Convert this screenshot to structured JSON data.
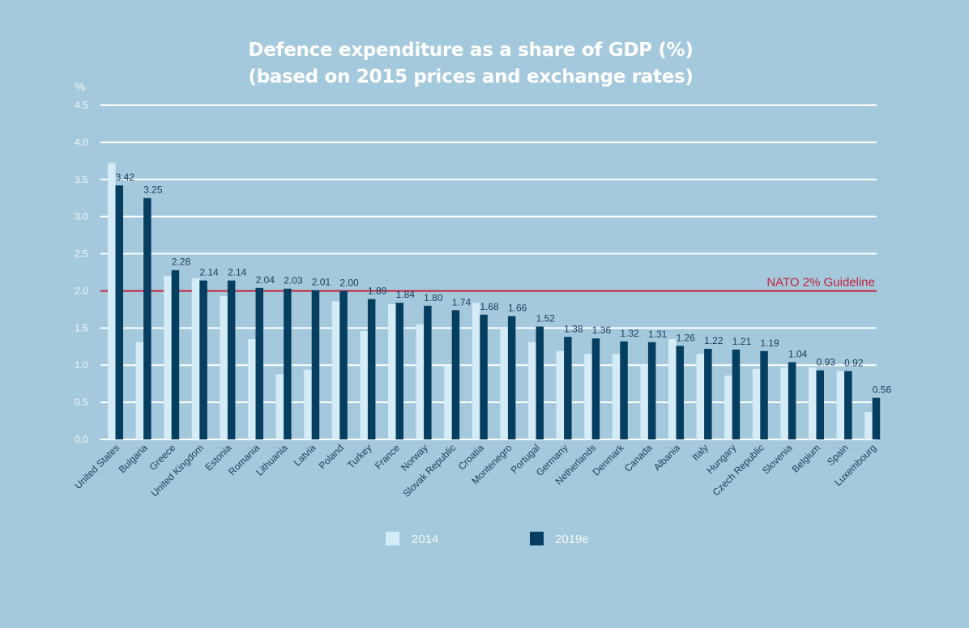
{
  "chart_data": {
    "type": "bar",
    "title_line1": "Defence expenditure as a share of GDP (%)",
    "title_line2": "(based on 2015 prices and exchange rates)",
    "xlabel": "",
    "ylabel": "%",
    "ylim": [
      0,
      4.5
    ],
    "yticks": [
      "0.0",
      "0.5",
      "1.0",
      "1.5",
      "2.0",
      "2.5",
      "3.0",
      "3.5",
      "4.0",
      "4.5"
    ],
    "ytick_values": [
      0,
      0.5,
      1.0,
      1.5,
      2.0,
      2.5,
      3.0,
      3.5,
      4.0,
      4.5
    ],
    "grid": true,
    "legend_position": "bottom-center",
    "categories": [
      "United States",
      "Bulgaria",
      "Greece",
      "United Kingdom",
      "Estonia",
      "Romania",
      "Lithuania",
      "Latvia",
      "Poland",
      "Turkey",
      "France",
      "Norway",
      "Slovak Republic",
      "Croatia",
      "Montenegro",
      "Portugal",
      "Germany",
      "Netherlands",
      "Denmark",
      "Canada",
      "Albania",
      "Italy",
      "Hungary",
      "Czech Republic",
      "Slovenia",
      "Belgium",
      "Spain",
      "Luxembourg"
    ],
    "series": [
      {
        "name": "2014",
        "color": "#d4ebf8",
        "values": [
          3.72,
          1.31,
          2.2,
          2.17,
          1.93,
          1.35,
          0.88,
          0.94,
          1.86,
          1.46,
          1.82,
          1.55,
          0.99,
          1.84,
          1.5,
          1.31,
          1.19,
          1.15,
          1.15,
          1.0,
          1.35,
          1.15,
          0.86,
          0.95,
          0.97,
          0.97,
          0.92,
          0.37
        ],
        "labels": null
      },
      {
        "name": "2019e",
        "color": "#063e60",
        "values": [
          3.42,
          3.25,
          2.28,
          2.14,
          2.14,
          2.04,
          2.03,
          2.01,
          2.0,
          1.89,
          1.84,
          1.8,
          1.74,
          1.68,
          1.66,
          1.52,
          1.38,
          1.36,
          1.32,
          1.31,
          1.26,
          1.22,
          1.21,
          1.19,
          1.04,
          0.93,
          0.92,
          0.56
        ],
        "labels": [
          "3.42",
          "3.25",
          "2.28",
          "2.14",
          "2.14",
          "2.04",
          "2.03",
          "2.01",
          "2.00",
          "1.89",
          "1.84",
          "1.80",
          "1.74",
          "1.68",
          "1.66",
          "1.52",
          "1.38",
          "1.36",
          "1.32",
          "1.31",
          "1.26",
          "1.22",
          "1.21",
          "1.19",
          "1.04",
          "0.93",
          "0.92",
          "0.56"
        ]
      }
    ],
    "reference_line": {
      "value": 2.0,
      "label": "NATO 2% Guideline",
      "color": "#c21f3a"
    }
  },
  "colors": {
    "background": "#a5c9dc",
    "gridline": "#ffffff",
    "text_dark": "#1a3b58",
    "text_light": "#f2f8fb"
  }
}
